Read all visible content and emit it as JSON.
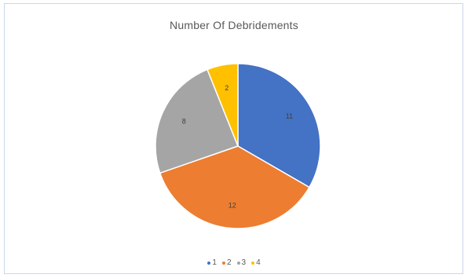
{
  "chart_data": {
    "type": "pie",
    "title": "Number Of Debridements",
    "categories": [
      "1",
      "2",
      "3",
      "4"
    ],
    "values": [
      11,
      12,
      8,
      2
    ],
    "colors": [
      "#4472C4",
      "#ED7D31",
      "#A5A5A5",
      "#FFC000"
    ],
    "legend_position": "bottom"
  }
}
